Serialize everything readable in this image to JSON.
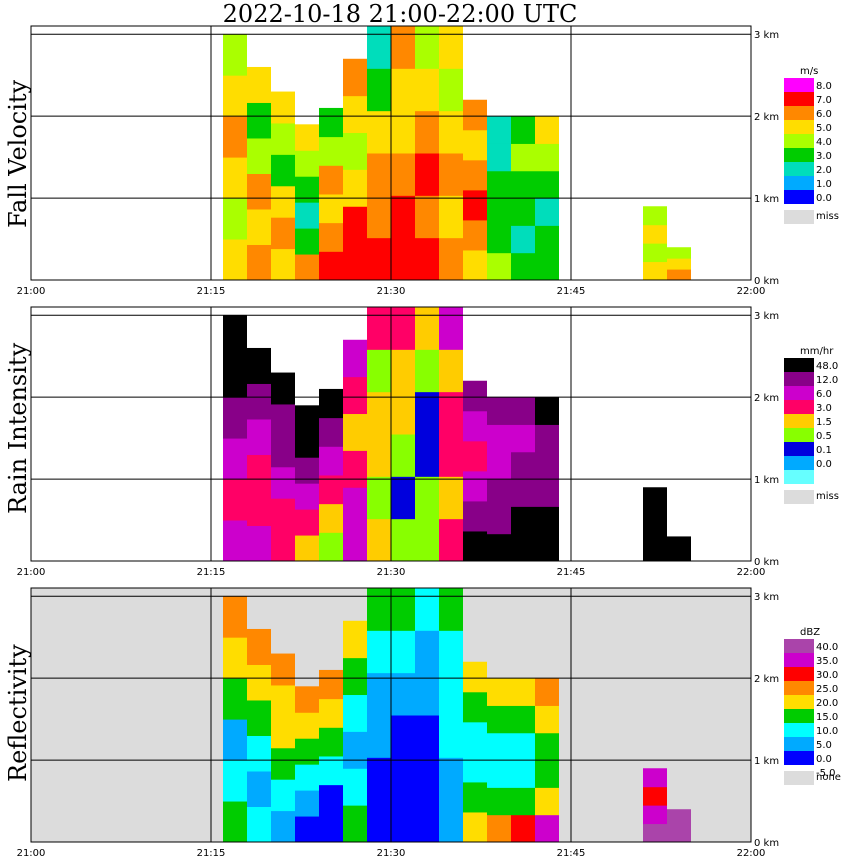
{
  "title": "2022-10-18   21:00-22:00 UTC",
  "colors": {
    "grid": "#000000",
    "missing": "#dcdcdc",
    "background": "#ffffff"
  },
  "chart_data": [
    {
      "type": "heatmap",
      "ylabel": "Fall Velocity",
      "xticks": [
        "21:00",
        "21:15",
        "21:30",
        "21:45",
        "22:00"
      ],
      "yticks": [
        "0 km",
        "1 km",
        "2 km",
        "3 km"
      ],
      "xlim": [
        "21:00",
        "22:00"
      ],
      "ylim_km": [
        0,
        3.1
      ],
      "background": "#ffffff",
      "legend": {
        "unit": "m/s",
        "labels": [
          "8.0",
          "7.0",
          "6.0",
          "5.0",
          "4.0",
          "3.0",
          "2.0",
          "1.0",
          "0.0"
        ],
        "colors": [
          "#ff00ff",
          "#ff0000",
          "#ff8800",
          "#ffdd00",
          "#aaff00",
          "#00cc00",
          "#00ddbb",
          "#00aaff",
          "#0000ff"
        ],
        "missing_label": "miss"
      },
      "columns": [
        {
          "t": 17,
          "top": 3.0,
          "c": [
            3,
            4,
            3,
            2,
            3,
            4
          ]
        },
        {
          "t": 19,
          "top": 2.6,
          "c": [
            2,
            3,
            2,
            4,
            5,
            3
          ]
        },
        {
          "t": 21,
          "top": 2.3,
          "c": [
            3,
            2,
            3,
            5,
            4,
            3
          ]
        },
        {
          "t": 23,
          "top": 1.9,
          "c": [
            2,
            5,
            6,
            5,
            4,
            3
          ]
        },
        {
          "t": 25,
          "top": 2.1,
          "c": [
            1,
            2,
            3,
            2,
            4,
            5
          ]
        },
        {
          "t": 27,
          "top": 2.7,
          "c": [
            1,
            1,
            3,
            4,
            3,
            2
          ]
        },
        {
          "t": 29,
          "top": 3.1,
          "c": [
            1,
            2,
            2,
            3,
            5,
            6
          ]
        },
        {
          "t": 31,
          "top": 3.1,
          "c": [
            1,
            1,
            2,
            3,
            3,
            2
          ]
        },
        {
          "t": 33,
          "top": 3.1,
          "c": [
            1,
            2,
            1,
            2,
            3,
            4
          ]
        },
        {
          "t": 35,
          "top": 3.1,
          "c": [
            2,
            3,
            2,
            3,
            4,
            3
          ]
        },
        {
          "t": 37,
          "top": 2.2,
          "c": [
            3,
            2,
            1,
            2,
            3,
            2
          ]
        },
        {
          "t": 39,
          "top": 2.0,
          "c": [
            4,
            5,
            5,
            5,
            6,
            6
          ]
        },
        {
          "t": 41,
          "top": 2.0,
          "c": [
            5,
            6,
            5,
            5,
            4,
            5
          ]
        },
        {
          "t": 43,
          "top": 2.0,
          "c": [
            5,
            5,
            6,
            5,
            4,
            3
          ]
        },
        {
          "t": 52,
          "top": 0.9,
          "c": [
            3,
            4,
            3,
            4
          ]
        },
        {
          "t": 54,
          "top": 0.4,
          "c": [
            2,
            3,
            4
          ]
        }
      ]
    },
    {
      "type": "heatmap",
      "ylabel": "Rain Intensity",
      "xticks": [
        "21:00",
        "21:15",
        "21:30",
        "21:45",
        "22:00"
      ],
      "yticks": [
        "0 km",
        "1 km",
        "2 km",
        "3 km"
      ],
      "xlim": [
        "21:00",
        "22:00"
      ],
      "ylim_km": [
        0,
        3.1
      ],
      "background": "#ffffff",
      "legend": {
        "unit": "mm/hr",
        "labels": [
          "48.0",
          "12.0",
          "6.0",
          "3.0",
          "1.5",
          "0.5",
          "0.1",
          "0.0"
        ],
        "colors": [
          "#000000",
          "#880088",
          "#cc00cc",
          "#ff0066",
          "#ffcc00",
          "#88ff00",
          "#0000dd",
          "#00aaff",
          "#66ffff"
        ],
        "missing_label": "miss"
      },
      "columns": [
        {
          "t": 17,
          "top": 3.0,
          "c": [
            2,
            3,
            2,
            1,
            0,
            0
          ]
        },
        {
          "t": 19,
          "top": 2.6,
          "c": [
            2,
            3,
            3,
            2,
            1,
            0
          ]
        },
        {
          "t": 21,
          "top": 2.3,
          "c": [
            3,
            3,
            2,
            1,
            1,
            0
          ]
        },
        {
          "t": 23,
          "top": 1.9,
          "c": [
            4,
            3,
            2,
            1,
            0,
            0
          ]
        },
        {
          "t": 25,
          "top": 2.1,
          "c": [
            5,
            4,
            3,
            2,
            1,
            0
          ]
        },
        {
          "t": 27,
          "top": 2.7,
          "c": [
            2,
            2,
            3,
            4,
            3,
            2
          ]
        },
        {
          "t": 29,
          "top": 3.1,
          "c": [
            4,
            5,
            4,
            4,
            5,
            3
          ]
        },
        {
          "t": 31,
          "top": 3.1,
          "c": [
            5,
            6,
            5,
            4,
            4,
            3
          ]
        },
        {
          "t": 33,
          "top": 3.1,
          "c": [
            5,
            5,
            6,
            6,
            5,
            4
          ]
        },
        {
          "t": 35,
          "top": 3.1,
          "c": [
            3,
            4,
            3,
            3,
            4,
            2
          ]
        },
        {
          "t": 37,
          "top": 2.2,
          "c": [
            0,
            1,
            2,
            3,
            2,
            1
          ]
        },
        {
          "t": 39,
          "top": 2.0,
          "c": [
            0,
            1,
            1,
            2,
            2,
            1
          ]
        },
        {
          "t": 41,
          "top": 2.0,
          "c": [
            0,
            0,
            1,
            1,
            2,
            1
          ]
        },
        {
          "t": 43,
          "top": 2.0,
          "c": [
            0,
            0,
            1,
            1,
            1,
            0
          ]
        },
        {
          "t": 52,
          "top": 0.9,
          "c": [
            0,
            0,
            0
          ]
        },
        {
          "t": 54,
          "top": 0.3,
          "c": [
            0
          ]
        }
      ]
    },
    {
      "type": "heatmap",
      "ylabel": "Reflectivity",
      "xticks": [
        "21:00",
        "21:15",
        "21:30",
        "21:45",
        "22:00"
      ],
      "yticks": [
        "0 km",
        "1 km",
        "2 km",
        "3 km"
      ],
      "xlim": [
        "21:00",
        "22:00"
      ],
      "ylim_km": [
        0,
        3.1
      ],
      "background": "#dcdcdc",
      "legend": {
        "unit": "dBZ",
        "labels": [
          "40.0",
          "35.0",
          "30.0",
          "25.0",
          "20.0",
          "15.0",
          "10.0",
          "5.0",
          "0.0",
          "-5.0"
        ],
        "colors": [
          "#aa44aa",
          "#cc00cc",
          "#ff0000",
          "#ff8800",
          "#ffdd00",
          "#00cc00",
          "#00ffff",
          "#00aaff",
          "#0000ff"
        ],
        "missing_label": "none"
      },
      "columns": [
        {
          "t": 17,
          "top": 3.0,
          "c": [
            5,
            6,
            7,
            5,
            4,
            3
          ]
        },
        {
          "t": 19,
          "top": 2.6,
          "c": [
            6,
            7,
            6,
            5,
            4,
            3
          ]
        },
        {
          "t": 21,
          "top": 2.3,
          "c": [
            7,
            6,
            5,
            4,
            4,
            3
          ]
        },
        {
          "t": 23,
          "top": 1.9,
          "c": [
            8,
            7,
            6,
            5,
            4,
            3
          ]
        },
        {
          "t": 25,
          "top": 2.1,
          "c": [
            8,
            8,
            6,
            5,
            4,
            3
          ]
        },
        {
          "t": 27,
          "top": 2.7,
          "c": [
            5,
            6,
            7,
            6,
            5,
            4
          ]
        },
        {
          "t": 29,
          "top": 3.1,
          "c": [
            8,
            8,
            7,
            7,
            6,
            5
          ]
        },
        {
          "t": 31,
          "top": 3.1,
          "c": [
            8,
            8,
            8,
            7,
            6,
            5
          ]
        },
        {
          "t": 33,
          "top": 3.1,
          "c": [
            8,
            8,
            8,
            7,
            7,
            6
          ]
        },
        {
          "t": 35,
          "top": 3.1,
          "c": [
            7,
            7,
            6,
            6,
            6,
            5
          ]
        },
        {
          "t": 37,
          "top": 2.2,
          "c": [
            4,
            5,
            6,
            6,
            5,
            4
          ]
        },
        {
          "t": 39,
          "top": 2.0,
          "c": [
            3,
            5,
            6,
            6,
            5,
            4
          ]
        },
        {
          "t": 41,
          "top": 2.0,
          "c": [
            2,
            5,
            6,
            6,
            5,
            4
          ]
        },
        {
          "t": 43,
          "top": 2.0,
          "c": [
            1,
            4,
            5,
            5,
            4,
            3
          ]
        },
        {
          "t": 52,
          "top": 0.9,
          "c": [
            0,
            1,
            2,
            1
          ]
        },
        {
          "t": 54,
          "top": 0.4,
          "c": [
            0,
            0
          ]
        }
      ]
    }
  ]
}
